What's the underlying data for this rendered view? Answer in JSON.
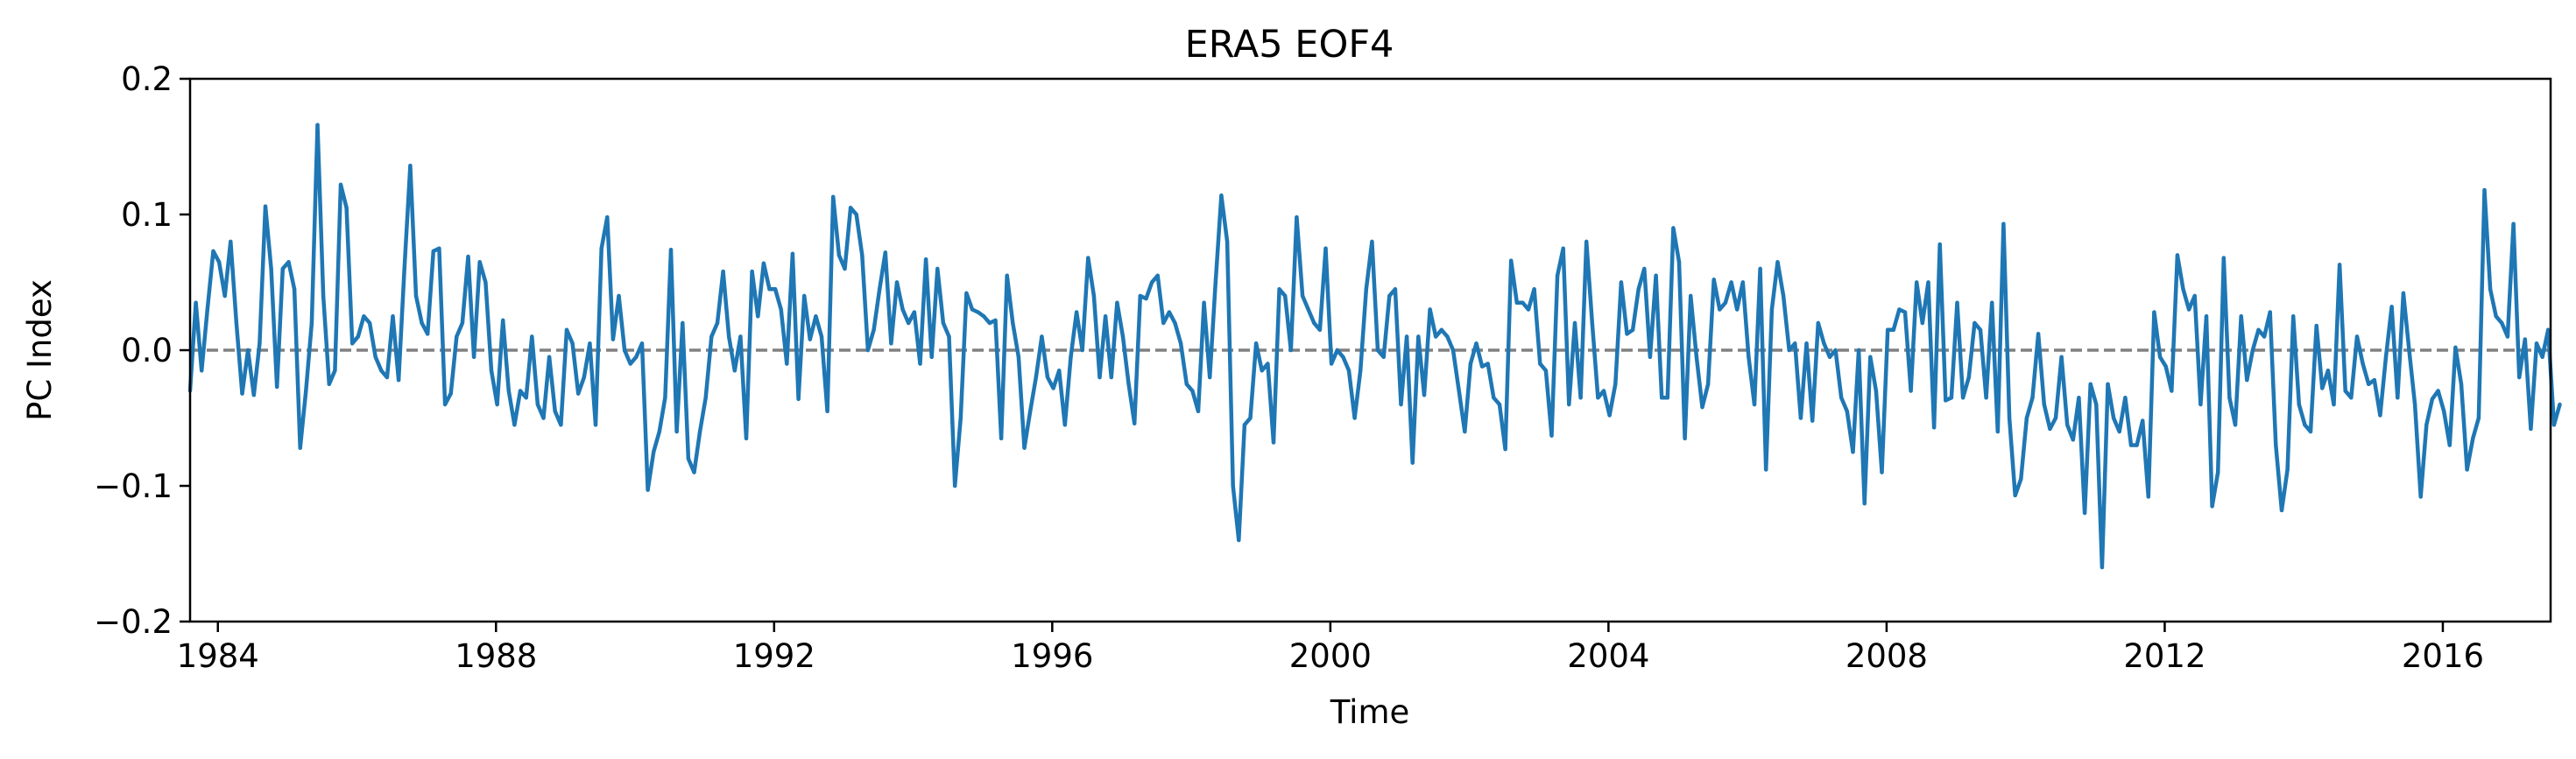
{
  "chart_data": {
    "type": "line",
    "title": "ERA5  EOF4",
    "xlabel": "Time",
    "ylabel": "PC Index",
    "xlim": [
      1983.6,
      2017.55
    ],
    "ylim": [
      -0.2,
      0.2
    ],
    "xticks": [
      1984,
      1988,
      1992,
      1996,
      2000,
      2004,
      2008,
      2012,
      2016
    ],
    "xtick_labels": [
      "1984",
      "1988",
      "1992",
      "1996",
      "2000",
      "2004",
      "2008",
      "2012",
      "2016"
    ],
    "yticks": [
      -0.2,
      -0.1,
      0.0,
      0.1,
      0.2
    ],
    "ytick_labels": [
      "−0.2",
      "−0.1",
      "0.0",
      "0.1",
      "0.2"
    ],
    "zero_line": {
      "y": 0,
      "style": "dashed",
      "color": "#808080"
    },
    "series": [
      {
        "color": "#1f77b4",
        "x_start": 1983.6,
        "x_step_years": 0.08333,
        "values": [
          -0.03,
          0.035,
          -0.015,
          0.03,
          0.073,
          0.065,
          0.04,
          0.08,
          0.02,
          -0.032,
          0.0,
          -0.033,
          0.005,
          0.106,
          0.06,
          -0.027,
          0.06,
          0.065,
          0.045,
          -0.072,
          -0.03,
          0.02,
          0.166,
          0.04,
          -0.025,
          -0.015,
          0.122,
          0.105,
          0.005,
          0.01,
          0.025,
          0.02,
          -0.005,
          -0.015,
          -0.02,
          0.025,
          -0.022,
          0.06,
          0.136,
          0.04,
          0.02,
          0.012,
          0.073,
          0.075,
          -0.04,
          -0.032,
          0.01,
          0.02,
          0.069,
          -0.005,
          0.065,
          0.05,
          -0.015,
          -0.04,
          0.022,
          -0.03,
          -0.055,
          -0.03,
          -0.035,
          0.01,
          -0.04,
          -0.05,
          -0.005,
          -0.045,
          -0.055,
          0.015,
          0.005,
          -0.032,
          -0.02,
          0.005,
          -0.055,
          0.075,
          0.098,
          0.008,
          0.04,
          0.0,
          -0.01,
          -0.005,
          0.005,
          -0.103,
          -0.075,
          -0.06,
          -0.035,
          0.074,
          -0.06,
          0.02,
          -0.08,
          -0.09,
          -0.06,
          -0.035,
          0.01,
          0.02,
          0.058,
          0.01,
          -0.015,
          0.01,
          -0.065,
          0.058,
          0.025,
          0.064,
          0.045,
          0.045,
          0.03,
          -0.01,
          0.071,
          -0.036,
          0.04,
          0.008,
          0.025,
          0.01,
          -0.045,
          0.113,
          0.07,
          0.06,
          0.105,
          0.1,
          0.07,
          0.0,
          0.015,
          0.045,
          0.072,
          0.005,
          0.05,
          0.03,
          0.02,
          0.028,
          -0.01,
          0.067,
          -0.005,
          0.06,
          0.02,
          0.01,
          -0.1,
          -0.05,
          0.042,
          0.03,
          0.028,
          0.025,
          0.02,
          0.022,
          -0.065,
          0.055,
          0.02,
          -0.005,
          -0.072,
          -0.045,
          -0.02,
          0.01,
          -0.02,
          -0.028,
          -0.015,
          -0.055,
          -0.005,
          0.028,
          0.0,
          0.068,
          0.04,
          -0.02,
          0.025,
          -0.02,
          0.035,
          0.01,
          -0.025,
          -0.054,
          0.04,
          0.038,
          0.05,
          0.055,
          0.02,
          0.028,
          0.02,
          0.005,
          -0.025,
          -0.03,
          -0.045,
          0.035,
          -0.02,
          0.05,
          0.114,
          0.08,
          -0.1,
          -0.14,
          -0.055,
          -0.05,
          0.005,
          -0.015,
          -0.01,
          -0.068,
          0.045,
          0.04,
          0.0,
          0.098,
          0.04,
          0.03,
          0.02,
          0.015,
          0.075,
          -0.01,
          0.0,
          -0.005,
          -0.015,
          -0.05,
          -0.015,
          0.045,
          0.08,
          0.0,
          -0.005,
          0.04,
          0.045,
          -0.04,
          0.01,
          -0.083,
          0.01,
          -0.033,
          0.03,
          0.01,
          0.015,
          0.01,
          0.0,
          -0.03,
          -0.06,
          -0.01,
          0.005,
          -0.012,
          -0.01,
          -0.035,
          -0.04,
          -0.073,
          0.066,
          0.035,
          0.035,
          0.03,
          0.045,
          -0.01,
          -0.015,
          -0.063,
          0.055,
          0.075,
          -0.04,
          0.02,
          -0.035,
          0.08,
          0.02,
          -0.035,
          -0.03,
          -0.048,
          -0.025,
          0.05,
          0.012,
          0.015,
          0.045,
          0.06,
          -0.005,
          0.055,
          -0.035,
          -0.035,
          0.09,
          0.065,
          -0.065,
          0.04,
          -0.005,
          -0.042,
          -0.025,
          0.052,
          0.03,
          0.035,
          0.05,
          0.03,
          0.05,
          -0.005,
          -0.04,
          0.06,
          -0.088,
          0.03,
          0.065,
          0.04,
          0.0,
          0.005,
          -0.05,
          0.005,
          -0.052,
          0.02,
          0.005,
          -0.005,
          0.0,
          -0.035,
          -0.045,
          -0.075,
          0.0,
          -0.113,
          -0.005,
          -0.03,
          -0.09,
          0.015,
          0.015,
          0.03,
          0.028,
          -0.03,
          0.05,
          0.02,
          0.05,
          -0.057,
          0.078,
          -0.037,
          -0.035,
          0.035,
          -0.035,
          -0.02,
          0.02,
          0.015,
          -0.035,
          0.035,
          -0.06,
          0.093,
          -0.05,
          -0.107,
          -0.095,
          -0.05,
          -0.035,
          0.012,
          -0.04,
          -0.058,
          -0.05,
          -0.005,
          -0.055,
          -0.066,
          -0.035,
          -0.12,
          -0.025,
          -0.04,
          -0.16,
          -0.025,
          -0.05,
          -0.06,
          -0.035,
          -0.07,
          -0.07,
          -0.052,
          -0.108,
          0.028,
          -0.005,
          -0.012,
          -0.03,
          0.07,
          0.045,
          0.03,
          0.04,
          -0.04,
          0.025,
          -0.115,
          -0.09,
          0.068,
          -0.035,
          -0.055,
          0.025,
          -0.022,
          0.0,
          0.015,
          0.01,
          0.028,
          -0.07,
          -0.118,
          -0.088,
          0.025,
          -0.04,
          -0.055,
          -0.06,
          0.018,
          -0.028,
          -0.015,
          -0.04,
          0.063,
          -0.03,
          -0.035,
          0.01,
          -0.01,
          -0.025,
          -0.022,
          -0.048,
          -0.005,
          0.032,
          -0.035,
          0.042,
          0.0,
          -0.04,
          -0.108,
          -0.055,
          -0.036,
          -0.03,
          -0.045,
          -0.07,
          0.002,
          -0.025,
          -0.088,
          -0.065,
          -0.05,
          0.118,
          0.045,
          0.025,
          0.02,
          0.01,
          0.093,
          -0.02,
          0.008,
          -0.058,
          0.005,
          -0.005,
          0.015,
          -0.055,
          -0.04
        ]
      }
    ],
    "grid": false,
    "legend": "none"
  }
}
